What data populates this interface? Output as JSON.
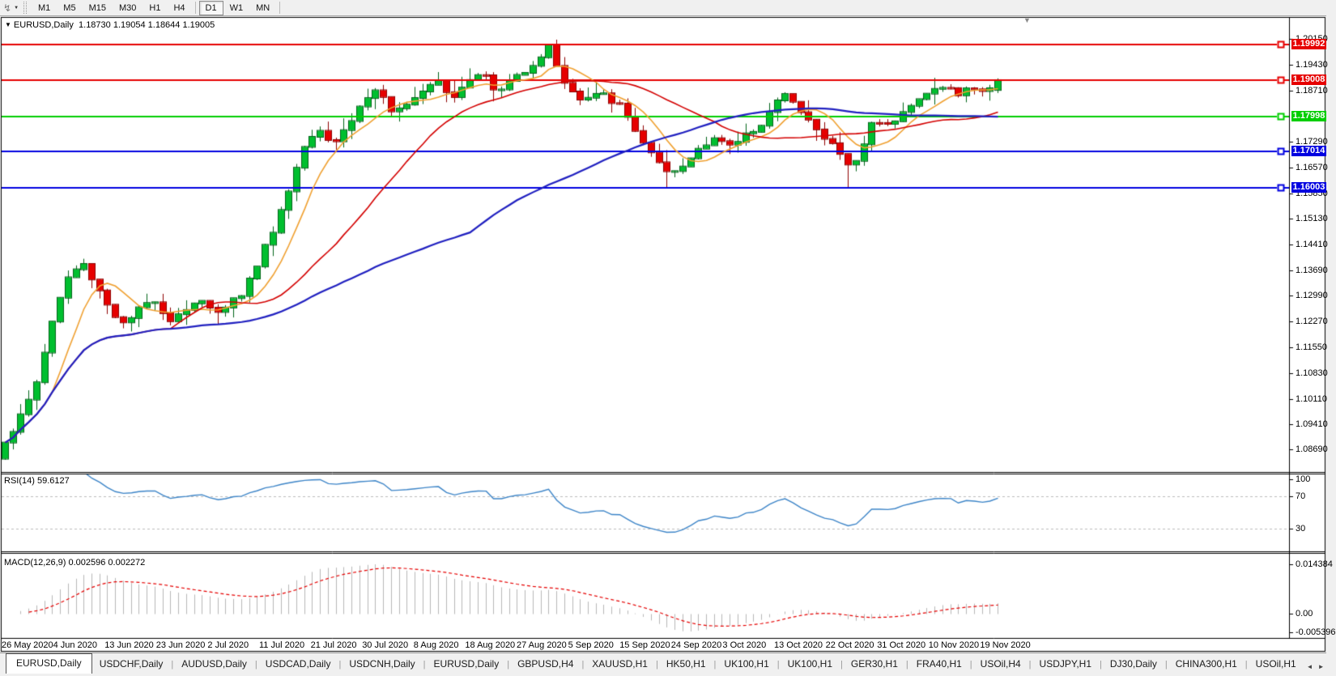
{
  "toolbar": {
    "tool_icon": "↯",
    "caret_icon": "▼",
    "timeframes": [
      "M1",
      "M5",
      "M15",
      "M30",
      "H1",
      "H4",
      "D1",
      "W1",
      "MN"
    ],
    "active_timeframe": "D1"
  },
  "chart_title": {
    "marker": "▼",
    "symbol": "EURUSD,Daily",
    "ohlc": "1.18730 1.19054 1.18644 1.19005"
  },
  "chart_misc": {
    "shift_marker_icon": "▼"
  },
  "price_axis": {
    "ticks": [
      "1.20150",
      "1.19430",
      "1.18710",
      "1.17290",
      "1.16570",
      "1.15850",
      "1.15130",
      "1.14410",
      "1.13690",
      "1.12990",
      "1.12270",
      "1.11550",
      "1.10830",
      "1.10110",
      "1.09410",
      "1.08690"
    ]
  },
  "levels": [
    {
      "label": "1.19992",
      "value": 1.19992,
      "color": "#e60000"
    },
    {
      "label": "1.19008",
      "value": 1.19008,
      "color": "#e60000"
    },
    {
      "label": "1.17998",
      "value": 1.17998,
      "color": "#00ce00"
    },
    {
      "label": "1.17014",
      "value": 1.17014,
      "color": "#0000e0"
    },
    {
      "label": "1.16003",
      "value": 1.16003,
      "color": "#0000e0"
    }
  ],
  "indicators": {
    "rsi": {
      "label": "RSI(14) 59.6127",
      "ticks": [
        {
          "text": "100",
          "v": 100
        },
        {
          "text": "70",
          "v": 70
        },
        {
          "text": "30",
          "v": 30
        }
      ],
      "level_values": [
        70,
        30
      ],
      "line_color": "#3d85c8"
    },
    "macd": {
      "label": "MACD(12,26,9) 0.002596 0.002272",
      "ticks": [
        {
          "text": "0.014384",
          "v": 0.014384
        },
        {
          "text": "0.00",
          "v": 0
        },
        {
          "text": "-0.005396",
          "v": -0.005396
        }
      ],
      "histogram_color": "#b8b8b8",
      "signal_color": "#e60000"
    }
  },
  "time_axis": {
    "labels": [
      "26 May 2020",
      "4 Jun 2020",
      "13 Jun 2020",
      "23 Jun 2020",
      "2 Jul 2020",
      "11 Jul 2020",
      "21 Jul 2020",
      "30 Jul 2020",
      "8 Aug 2020",
      "18 Aug 2020",
      "27 Aug 2020",
      "5 Sep 2020",
      "15 Sep 2020",
      "24 Sep 2020",
      "3 Oct 2020",
      "13 Oct 2020",
      "22 Oct 2020",
      "31 Oct 2020",
      "10 Nov 2020",
      "19 Nov 2020"
    ]
  },
  "tabs": {
    "items": [
      "EURUSD,Daily",
      "USDCHF,Daily",
      "AUDUSD,Daily",
      "USDCAD,Daily",
      "USDCNH,Daily",
      "EURUSD,Daily",
      "GBPUSD,H4",
      "XAUUSD,H1",
      "HK50,H1",
      "UK100,H1",
      "UK100,H1",
      "GER30,H1",
      "FRA40,H1",
      "USOil,H4",
      "USDJPY,H1",
      "DJ30,Daily",
      "CHINA300,H1",
      "USOil,H1"
    ],
    "active_index": 0,
    "scroll_left_icon": "◄",
    "scroll_right_icon": "►"
  },
  "chart_data": {
    "type": "candlestick",
    "title": "EURUSD,Daily",
    "last_bar": {
      "open": 1.1873,
      "high": 1.19054,
      "low": 1.18644,
      "close": 1.19005
    },
    "ylim": [
      1.0811,
      1.207
    ],
    "x_range": [
      "26 May 2020",
      "24 Nov 2020"
    ],
    "bar_count": 127,
    "up_color": "#00bf2f",
    "up_edge_color": "#006418",
    "down_color": "#e60000",
    "down_edge_color": "#8f0000",
    "levels": [
      1.19992,
      1.19008,
      1.17998,
      1.17014,
      1.16003
    ],
    "moving_averages": [
      {
        "color": "#f0a030",
        "period": 7
      },
      {
        "color": "#d40000",
        "period": 22
      },
      {
        "color": "#2020c0",
        "period": 60
      }
    ],
    "close_path_anchors": [
      [
        0.0,
        1.0895
      ],
      [
        0.012,
        1.094
      ],
      [
        0.03,
        1.104
      ],
      [
        0.048,
        1.123
      ],
      [
        0.062,
        1.1345
      ],
      [
        0.078,
        1.139
      ],
      [
        0.092,
        1.133
      ],
      [
        0.106,
        1.1262
      ],
      [
        0.12,
        1.1215
      ],
      [
        0.135,
        1.1258
      ],
      [
        0.15,
        1.1292
      ],
      [
        0.165,
        1.123
      ],
      [
        0.18,
        1.1258
      ],
      [
        0.195,
        1.1288
      ],
      [
        0.21,
        1.1252
      ],
      [
        0.225,
        1.1278
      ],
      [
        0.24,
        1.1308
      ],
      [
        0.255,
        1.1392
      ],
      [
        0.27,
        1.1485
      ],
      [
        0.285,
        1.1585
      ],
      [
        0.3,
        1.1712
      ],
      [
        0.315,
        1.1775
      ],
      [
        0.33,
        1.1722
      ],
      [
        0.345,
        1.1772
      ],
      [
        0.36,
        1.1838
      ],
      [
        0.375,
        1.1878
      ],
      [
        0.39,
        1.1798
      ],
      [
        0.405,
        1.1842
      ],
      [
        0.42,
        1.1872
      ],
      [
        0.435,
        1.1912
      ],
      [
        0.45,
        1.1848
      ],
      [
        0.465,
        1.1902
      ],
      [
        0.48,
        1.1928
      ],
      [
        0.495,
        1.186
      ],
      [
        0.51,
        1.1902
      ],
      [
        0.53,
        1.1942
      ],
      [
        0.548,
        1.1992
      ],
      [
        0.565,
        1.1888
      ],
      [
        0.58,
        1.1842
      ],
      [
        0.6,
        1.1862
      ],
      [
        0.618,
        1.1832
      ],
      [
        0.635,
        1.1762
      ],
      [
        0.652,
        1.1688
      ],
      [
        0.668,
        1.1632
      ],
      [
        0.685,
        1.1662
      ],
      [
        0.7,
        1.1718
      ],
      [
        0.715,
        1.1742
      ],
      [
        0.73,
        1.1712
      ],
      [
        0.745,
        1.1748
      ],
      [
        0.76,
        1.1772
      ],
      [
        0.775,
        1.1832
      ],
      [
        0.79,
        1.1862
      ],
      [
        0.805,
        1.1808
      ],
      [
        0.822,
        1.1742
      ],
      [
        0.838,
        1.1712
      ],
      [
        0.852,
        1.1648
      ],
      [
        0.862,
        1.1702
      ],
      [
        0.876,
        1.1798
      ],
      [
        0.89,
        1.1772
      ],
      [
        0.904,
        1.1818
      ],
      [
        0.918,
        1.1838
      ],
      [
        0.932,
        1.1868
      ],
      [
        0.946,
        1.1888
      ],
      [
        0.96,
        1.1858
      ],
      [
        0.974,
        1.1882
      ],
      [
        0.988,
        1.1868
      ],
      [
        1.0,
        1.1902
      ]
    ]
  }
}
